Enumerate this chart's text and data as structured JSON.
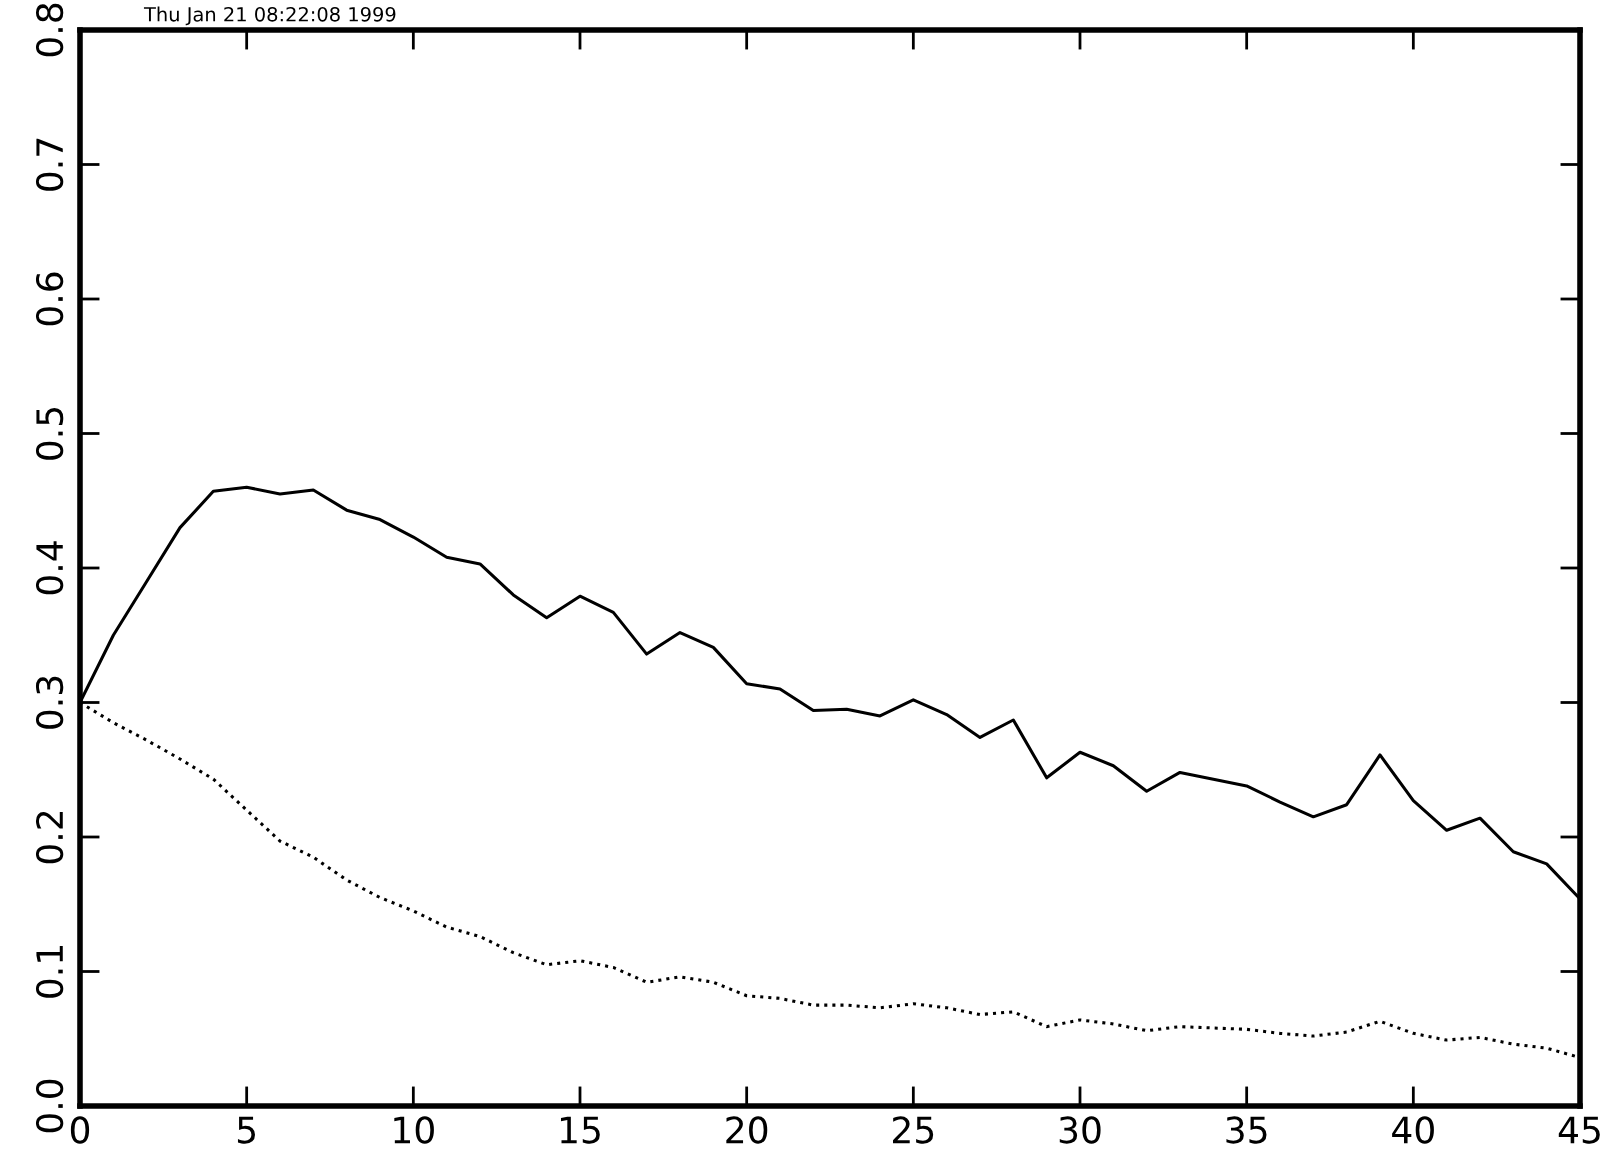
{
  "chart_data": {
    "type": "line",
    "annotations": [
      "Thu Jan 21 08:22:08 1999"
    ],
    "x": [
      0,
      1,
      2,
      3,
      4,
      5,
      6,
      7,
      8,
      9,
      10,
      11,
      12,
      13,
      14,
      15,
      16,
      17,
      18,
      19,
      20,
      21,
      22,
      23,
      24,
      25,
      26,
      27,
      28,
      29,
      30,
      31,
      32,
      33,
      34,
      35,
      36,
      37,
      38,
      39,
      40,
      41,
      42,
      43,
      44,
      45
    ],
    "series": [
      {
        "color": "#000000",
        "line_style": "solid",
        "values": [
          0.3,
          0.35,
          0.39,
          0.43,
          0.457,
          0.46,
          0.455,
          0.458,
          0.443,
          0.436,
          0.423,
          0.408,
          0.403,
          0.38,
          0.363,
          0.379,
          0.367,
          0.336,
          0.352,
          0.341,
          0.314,
          0.31,
          0.294,
          0.295,
          0.29,
          0.302,
          0.291,
          0.274,
          0.287,
          0.244,
          0.263,
          0.253,
          0.234,
          0.248,
          0.243,
          0.238,
          0.226,
          0.215,
          0.224,
          0.261,
          0.227,
          0.205,
          0.214,
          0.189,
          0.18,
          0.154
        ]
      },
      {
        "color": "#000000",
        "line_style": "dotted",
        "values": [
          0.3,
          0.285,
          0.272,
          0.258,
          0.243,
          0.22,
          0.197,
          0.185,
          0.168,
          0.155,
          0.145,
          0.133,
          0.126,
          0.114,
          0.105,
          0.108,
          0.103,
          0.092,
          0.096,
          0.092,
          0.082,
          0.08,
          0.075,
          0.075,
          0.073,
          0.076,
          0.073,
          0.068,
          0.07,
          0.059,
          0.064,
          0.061,
          0.056,
          0.059,
          0.058,
          0.057,
          0.054,
          0.052,
          0.055,
          0.063,
          0.054,
          0.049,
          0.051,
          0.046,
          0.043,
          0.036
        ]
      }
    ],
    "xlim": [
      0,
      45
    ],
    "xticks": [
      0,
      5,
      10,
      15,
      20,
      25,
      30,
      35,
      40,
      45
    ],
    "ylim": [
      0,
      0.8
    ],
    "yticks": [
      {
        "value": 0,
        "label": "0.0"
      },
      0.1,
      0.2,
      0.3,
      0.4,
      0.5,
      0.6,
      0.7,
      0.8
    ],
    "grid": false,
    "legend": false,
    "marker": "none"
  }
}
